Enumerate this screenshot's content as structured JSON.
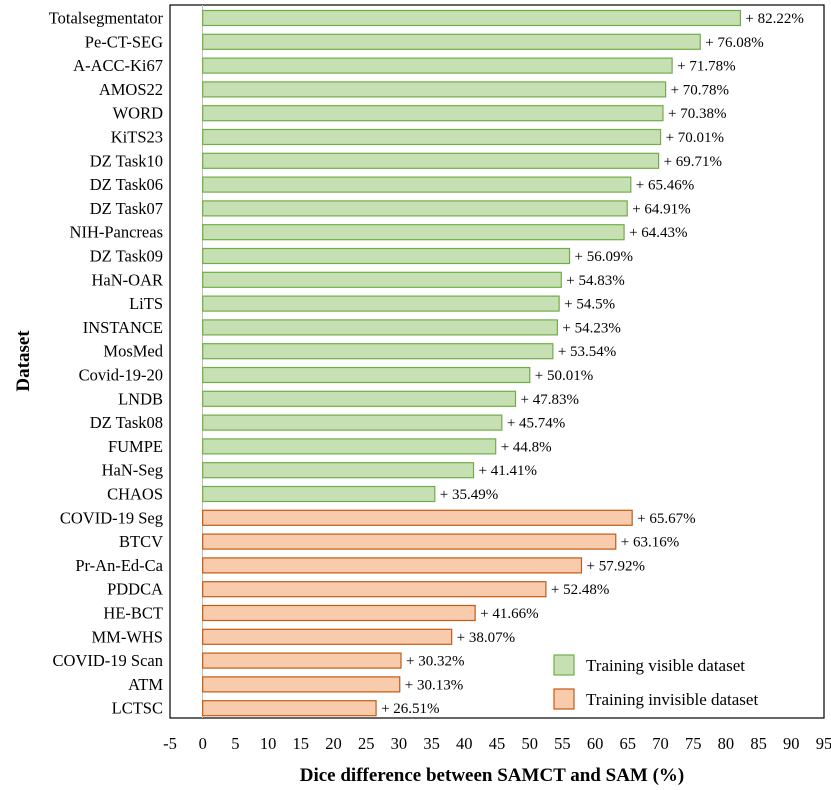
{
  "chart_data": {
    "type": "bar",
    "orientation": "horizontal",
    "xlabel": "Dice difference between SAMCT and SAM (%)",
    "ylabel": "Dataset",
    "xlim": [
      -5,
      95
    ],
    "xticks": [
      -5,
      0,
      5,
      10,
      15,
      20,
      25,
      30,
      35,
      40,
      45,
      50,
      55,
      60,
      65,
      70,
      75,
      80,
      85,
      90,
      95
    ],
    "legend_position": "bottom-right",
    "grid": false,
    "colors": {
      "visible_fill": "#c6e0b4",
      "visible_stroke": "#70ad47",
      "invisible_fill": "#f8cbad",
      "invisible_stroke": "#c55a11"
    },
    "series": [
      {
        "name": "Training visible dataset",
        "color_key": "visible",
        "categories": [
          "Totalsegmentator",
          "Pe-CT-SEG",
          "A-ACC-Ki67",
          "AMOS22",
          "WORD",
          "KiTS23",
          "DZ Task10",
          "DZ Task06",
          "DZ Task07",
          "NIH-Pancreas",
          "DZ Task09",
          "HaN-OAR",
          "LiTS",
          "INSTANCE",
          "MosMed",
          "Covid-19-20",
          "LNDB",
          "DZ Task08",
          "FUMPE",
          "HaN-Seg",
          "CHAOS"
        ],
        "values": [
          82.22,
          76.08,
          71.78,
          70.78,
          70.38,
          70.01,
          69.71,
          65.46,
          64.91,
          64.43,
          56.09,
          54.83,
          54.5,
          54.23,
          53.54,
          50.01,
          47.83,
          45.74,
          44.8,
          41.41,
          35.49
        ],
        "labels": [
          "+ 82.22%",
          "+ 76.08%",
          "+ 71.78%",
          "+ 70.78%",
          "+ 70.38%",
          "+ 70.01%",
          "+ 69.71%",
          "+ 65.46%",
          "+ 64.91%",
          "+ 64.43%",
          "+ 56.09%",
          "+ 54.83%",
          "+ 54.5%",
          "+ 54.23%",
          "+ 53.54%",
          "+ 50.01%",
          "+ 47.83%",
          "+ 45.74%",
          "+ 44.8%",
          "+ 41.41%",
          "+ 35.49%"
        ]
      },
      {
        "name": "Training invisible dataset",
        "color_key": "invisible",
        "categories": [
          "COVID-19 Seg",
          "BTCV",
          "Pr-An-Ed-Ca",
          "PDDCA",
          "HE-BCT",
          "MM-WHS",
          "COVID-19 Scan",
          "ATM",
          "LCTSC"
        ],
        "values": [
          65.67,
          63.16,
          57.92,
          52.48,
          41.66,
          38.07,
          30.32,
          30.13,
          26.51
        ],
        "labels": [
          "+ 65.67%",
          "+ 63.16%",
          "+ 57.92%",
          "+ 52.48%",
          "+ 41.66%",
          "+ 38.07%",
          "+ 30.32%",
          "+ 30.13%",
          "+ 26.51%"
        ]
      }
    ]
  }
}
